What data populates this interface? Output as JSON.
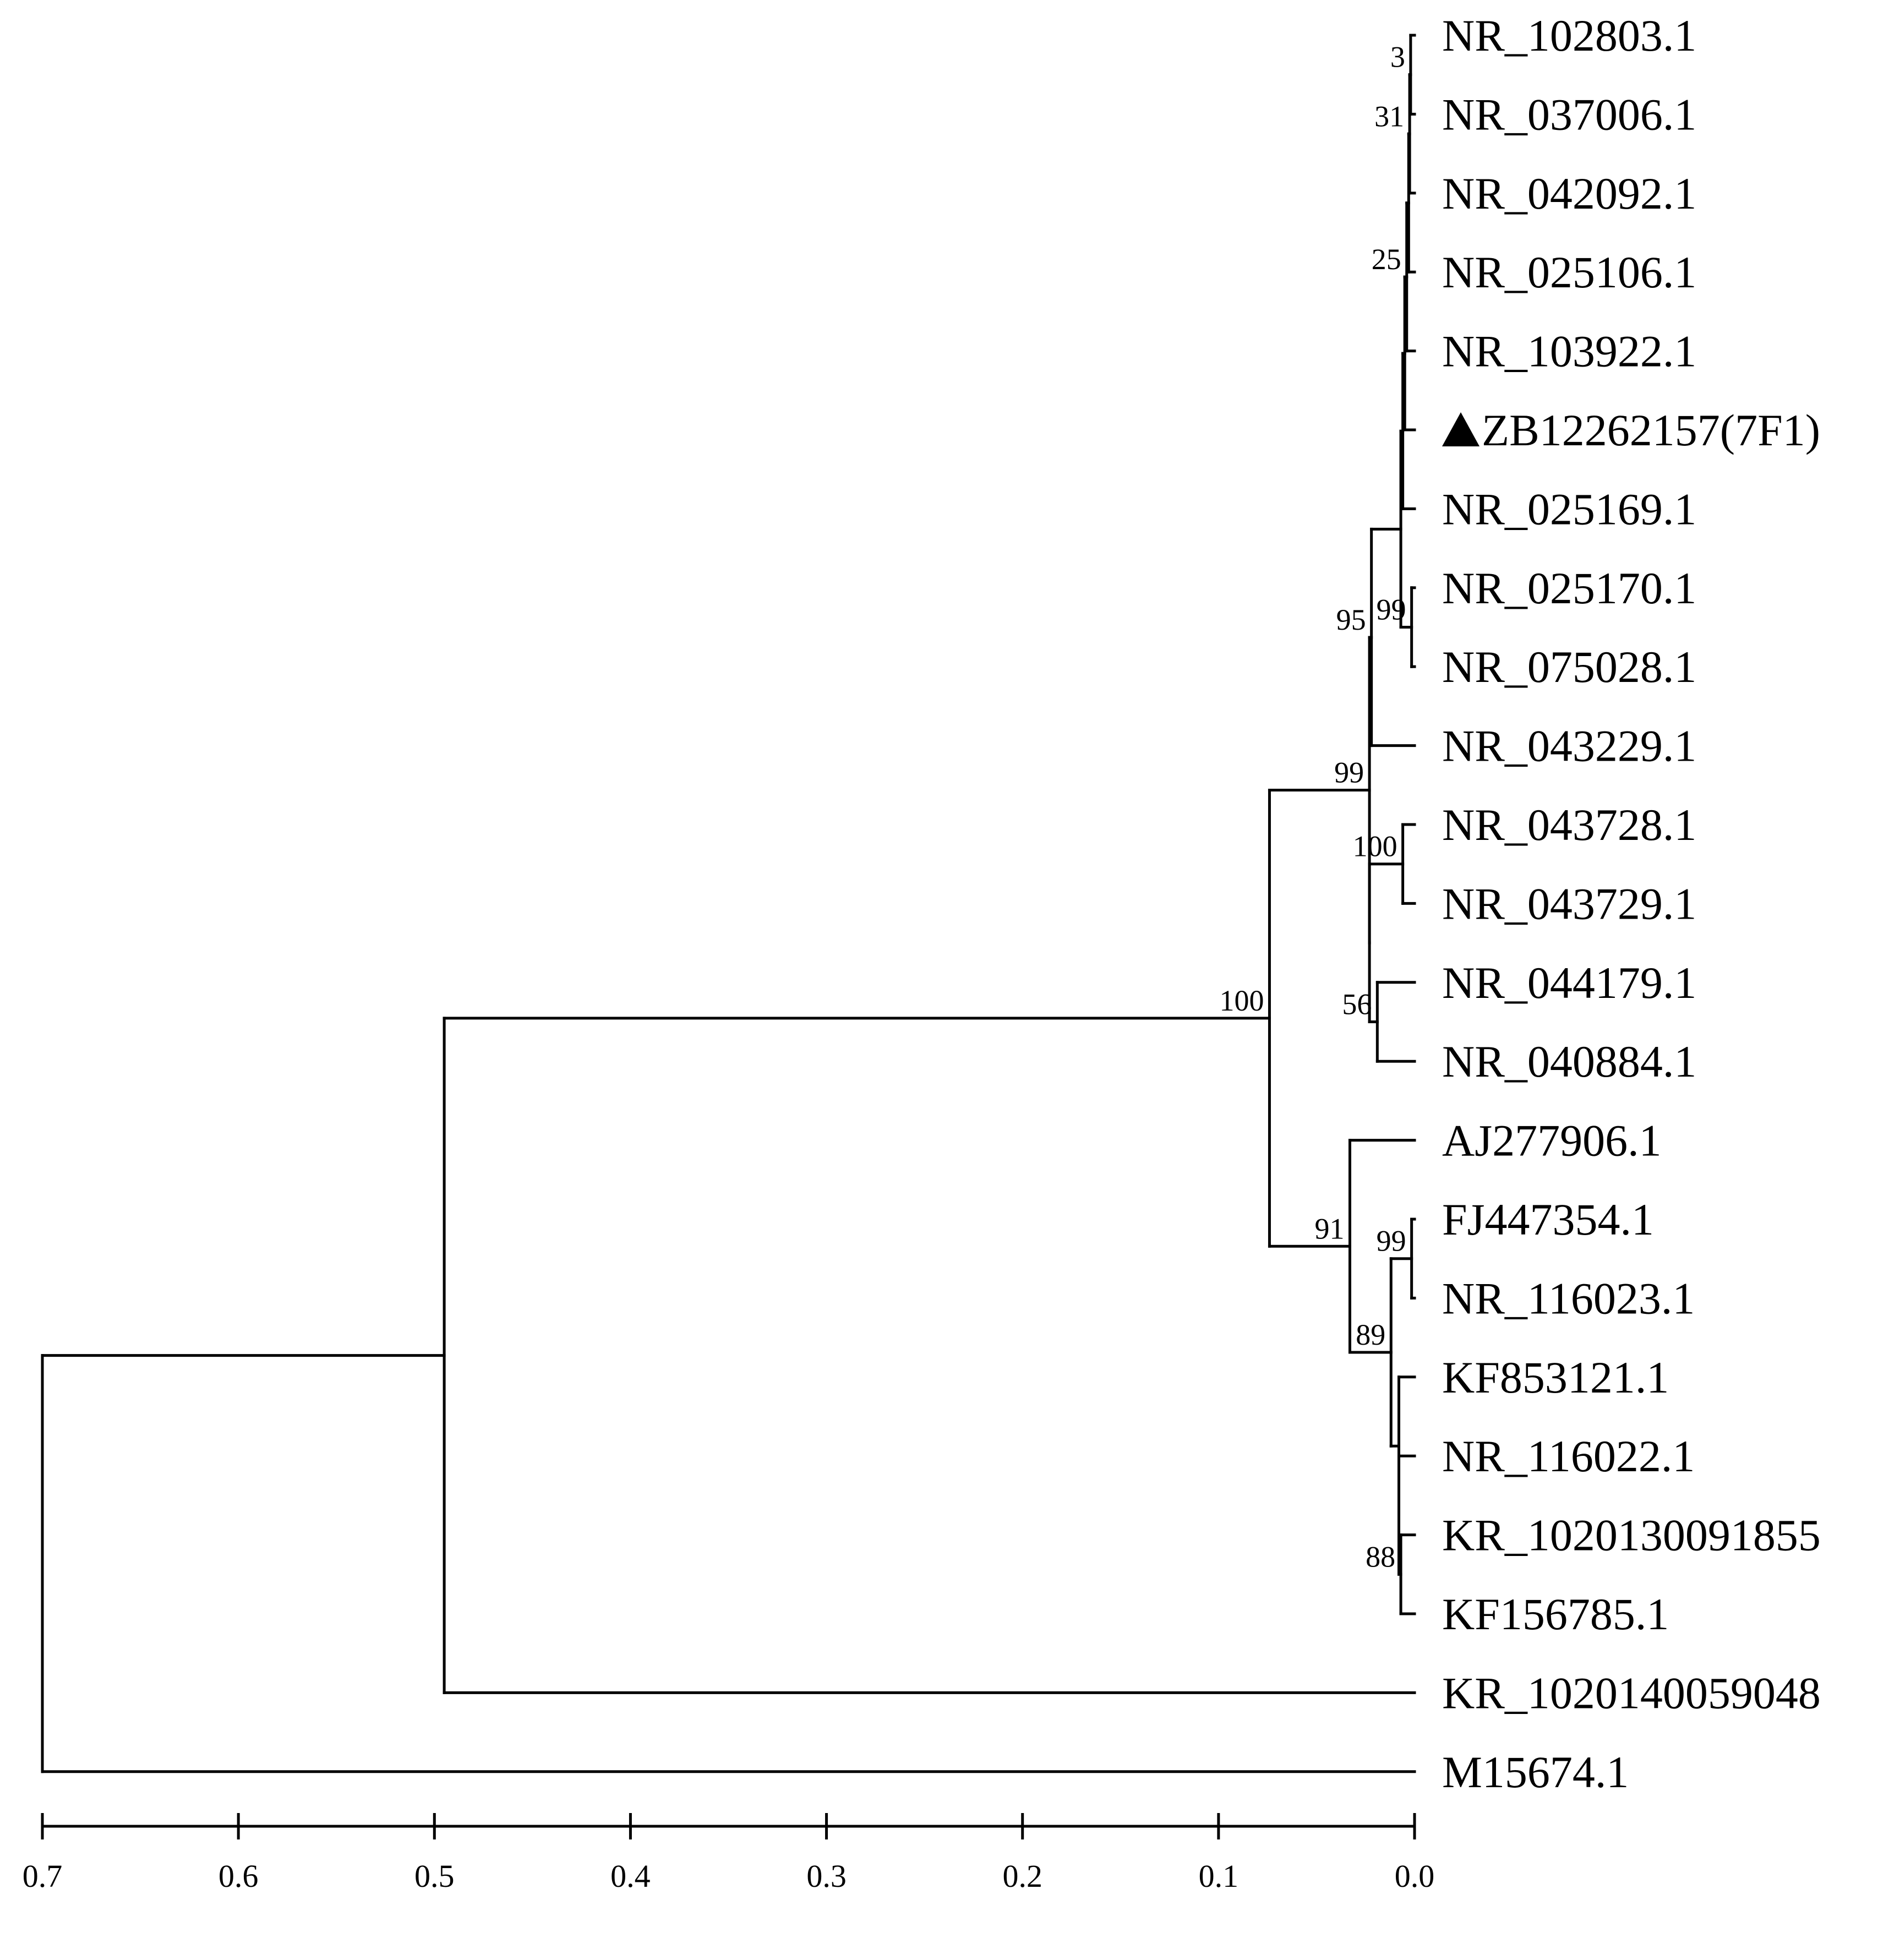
{
  "chart_data": {
    "type": "dendrogram",
    "axis": {
      "ticks": [
        "0.7",
        "0.6",
        "0.5",
        "0.4",
        "0.3",
        "0.2",
        "0.1",
        "0.0"
      ],
      "tick_values": [
        0.7,
        0.6,
        0.5,
        0.4,
        0.3,
        0.2,
        0.1,
        0.0
      ],
      "range": [
        0.7,
        0.0
      ],
      "reversed": true
    },
    "leaves": [
      "NR_102803.1",
      "NR_037006.1",
      "NR_042092.1",
      "NR_025106.1",
      "NR_103922.1",
      "▲ZB12262157(7F1)",
      "NR_025169.1",
      "NR_025170.1",
      "NR_075028.1",
      "NR_043229.1",
      "NR_043728.1",
      "NR_043729.1",
      "NR_044179.1",
      "NR_040884.1",
      "AJ277906.1",
      "FJ447354.1",
      "NR_116023.1",
      "KF853121.1",
      "NR_116022.1",
      "KR_1020130091855",
      "KF156785.1",
      "KR_1020140059048",
      "M15674.1"
    ],
    "clusters": [
      {
        "id": "c_a",
        "height": 0.002,
        "members": [
          0,
          1
        ],
        "bootstrap": "3"
      },
      {
        "id": "c_b",
        "height": 0.0025,
        "members": [
          "c_a",
          2
        ],
        "bootstrap": "31"
      },
      {
        "id": "c_c",
        "height": 0.003,
        "members": [
          "c_b",
          3
        ],
        "bootstrap": ""
      },
      {
        "id": "c_d",
        "height": 0.004,
        "members": [
          "c_c",
          4
        ],
        "bootstrap": "25"
      },
      {
        "id": "c_e",
        "height": 0.005,
        "members": [
          "c_d",
          5
        ],
        "bootstrap": ""
      },
      {
        "id": "c_f",
        "height": 0.006,
        "members": [
          "c_e",
          6
        ],
        "bootstrap": ""
      },
      {
        "id": "c_g",
        "height": 0.0015,
        "members": [
          7,
          8
        ],
        "bootstrap": "99"
      },
      {
        "id": "c_h",
        "height": 0.007,
        "members": [
          "c_f",
          "c_g"
        ],
        "bootstrap": ""
      },
      {
        "id": "c_i",
        "height": 0.022,
        "members": [
          "c_h",
          9
        ],
        "bootstrap": "95"
      },
      {
        "id": "c_j",
        "height": 0.006,
        "members": [
          10,
          11
        ],
        "bootstrap": "100"
      },
      {
        "id": "c_k",
        "height": 0.019,
        "members": [
          12,
          13
        ],
        "bootstrap": "56"
      },
      {
        "id": "c_l",
        "height": 0.023,
        "members": [
          "c_j",
          "c_k"
        ],
        "bootstrap": ""
      },
      {
        "id": "c_m",
        "height": 0.023,
        "members": [
          "c_i",
          "c_l"
        ],
        "bootstrap": "99"
      },
      {
        "id": "c_n",
        "height": 0.0015,
        "members": [
          15,
          16
        ],
        "bootstrap": "99"
      },
      {
        "id": "c_o",
        "height": 0.007,
        "members": [
          19,
          20
        ],
        "bootstrap": "88"
      },
      {
        "id": "c_p",
        "height": 0.008,
        "members": [
          18,
          "c_o"
        ],
        "bootstrap": ""
      },
      {
        "id": "c_q",
        "height": 0.008,
        "members": [
          17,
          "c_p"
        ],
        "bootstrap": ""
      },
      {
        "id": "c_r",
        "height": 0.012,
        "members": [
          "c_n",
          "c_q"
        ],
        "bootstrap": "89"
      },
      {
        "id": "c_s",
        "height": 0.033,
        "members": [
          14,
          "c_r"
        ],
        "bootstrap": "91"
      },
      {
        "id": "c_t",
        "height": 0.074,
        "members": [
          "c_m",
          "c_s"
        ],
        "bootstrap": "100"
      },
      {
        "id": "c_u",
        "height": 0.495,
        "members": [
          "c_t",
          21
        ],
        "bootstrap": ""
      },
      {
        "id": "c_v",
        "height": 0.7,
        "members": [
          "c_u",
          22
        ],
        "bootstrap": ""
      }
    ]
  }
}
